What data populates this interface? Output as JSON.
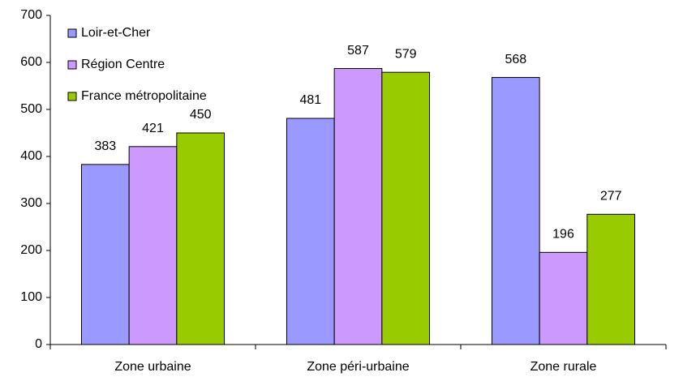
{
  "chart_data": {
    "type": "bar",
    "categories": [
      "Zone urbaine",
      "Zone péri-urbaine",
      "Zone rurale"
    ],
    "series": [
      {
        "name": "Loir-et-Cher",
        "color": "#9999ff",
        "values": [
          383,
          481,
          568
        ]
      },
      {
        "name": "Région Centre",
        "color": "#cc99ff",
        "values": [
          421,
          587,
          196
        ]
      },
      {
        "name": "France métropolitaine",
        "color": "#99cc00",
        "values": [
          450,
          579,
          277
        ]
      }
    ],
    "ylim": [
      0,
      700
    ],
    "yticks": [
      0,
      100,
      200,
      300,
      400,
      500,
      600,
      700
    ],
    "grid": false,
    "legend": "upper left"
  }
}
